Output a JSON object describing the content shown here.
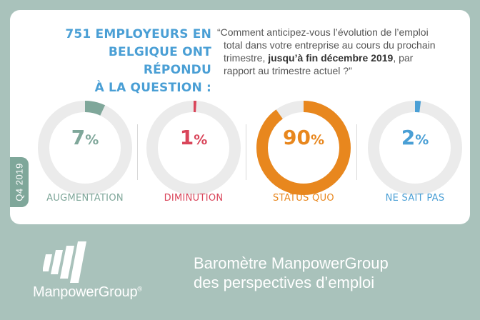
{
  "header": {
    "headline_lines": [
      "751 EMPLOYEURS EN",
      "BELGIQUE ONT RÉPONDU",
      "À LA QUESTION :"
    ],
    "question_part1": "“Comment anticipez-vous l’évolution de l’emploi",
    "question_part2": "total dans votre entreprise au cours du prochain",
    "question_part3": "trimestre, ",
    "question_bold": "jusqu’à fin décembre 2019",
    "question_part4": ", par",
    "question_part5": "rapport au trimestre actuel ?”"
  },
  "quarter_label": "Q4 2019",
  "chart_data": {
    "type": "donut",
    "unit": "%",
    "categories": [
      "AUGMENTATION",
      "DIMINUTION",
      "STATUS QUO",
      "NE SAIT PAS"
    ],
    "values": [
      7,
      1,
      90,
      2
    ],
    "value_labels": [
      "7",
      "1",
      "90",
      "2"
    ],
    "colors": [
      "#7fa79a",
      "#d9455a",
      "#e8871e",
      "#4a9fd5"
    ],
    "track_color": "#ebebeb",
    "max": 100
  },
  "footer": {
    "brand": "ManpowerGroup",
    "trademark": "®",
    "tagline_line1": "Baromètre ManpowerGroup",
    "tagline_line2": "des perspectives d’emploi"
  }
}
